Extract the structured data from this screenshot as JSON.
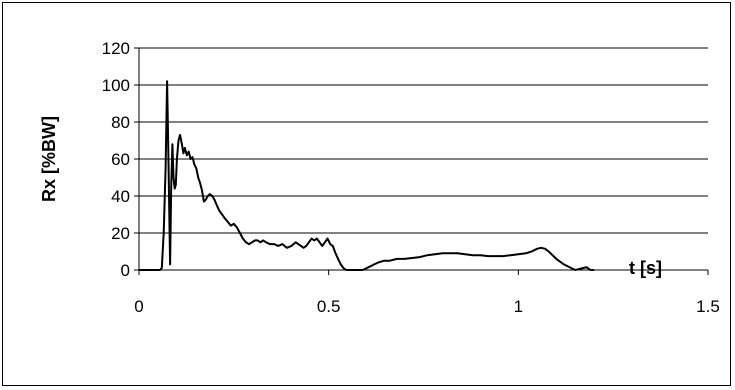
{
  "chart_data": {
    "type": "line",
    "title": "",
    "xlabel": "t [s]",
    "ylabel": "Rx [%BW]",
    "xlim": [
      0,
      1.5
    ],
    "ylim": [
      0,
      120
    ],
    "xticks": [
      "0",
      "0.5",
      "1",
      "1.5"
    ],
    "xtick_values": [
      0,
      0.5,
      1,
      1.5
    ],
    "yticks": [
      "0",
      "20",
      "40",
      "60",
      "80",
      "100",
      "120"
    ],
    "ytick_values": [
      0,
      20,
      40,
      60,
      80,
      100,
      120
    ],
    "grid": "horizontal",
    "legend": "none",
    "line_color": "#000000",
    "series": [
      {
        "x": [
          0,
          0.055,
          0.06,
          0.065,
          0.07,
          0.074,
          0.078,
          0.082,
          0.085,
          0.088,
          0.091,
          0.094,
          0.097,
          0.1,
          0.104,
          0.108,
          0.113,
          0.117,
          0.121,
          0.126,
          0.131,
          0.136,
          0.141,
          0.146,
          0.151,
          0.156,
          0.161,
          0.166,
          0.171,
          0.176,
          0.181,
          0.187,
          0.193,
          0.199,
          0.205,
          0.212,
          0.219,
          0.226,
          0.234,
          0.242,
          0.25,
          0.258,
          0.266,
          0.274,
          0.282,
          0.29,
          0.298,
          0.306,
          0.313,
          0.32,
          0.327,
          0.335,
          0.345,
          0.356,
          0.367,
          0.378,
          0.39,
          0.402,
          0.413,
          0.42,
          0.427,
          0.434,
          0.441,
          0.448,
          0.455,
          0.462,
          0.469,
          0.476,
          0.483,
          0.49,
          0.497,
          0.504,
          0.511,
          0.518,
          0.525,
          0.532,
          0.539,
          0.546,
          0.553,
          0.56,
          0.57,
          0.58,
          0.59,
          0.6,
          0.61,
          0.62,
          0.63,
          0.645,
          0.66,
          0.68,
          0.7,
          0.72,
          0.74,
          0.76,
          0.78,
          0.8,
          0.82,
          0.84,
          0.86,
          0.88,
          0.9,
          0.92,
          0.94,
          0.96,
          0.98,
          1.0,
          1.02,
          1.035,
          1.05,
          1.06,
          1.07,
          1.08,
          1.09,
          1.1,
          1.12,
          1.14,
          1.15,
          1.16,
          1.17,
          1.18,
          1.19,
          1.2
        ],
        "y": [
          0,
          0,
          1,
          20,
          55,
          102,
          55,
          3,
          45,
          68,
          50,
          44,
          46,
          60,
          70,
          73,
          68,
          63,
          66,
          62,
          64,
          60,
          61,
          57,
          55,
          50,
          47,
          43,
          37,
          38,
          40,
          41,
          40,
          38,
          35,
          32,
          30,
          28,
          26,
          24,
          25,
          23,
          20,
          17,
          15,
          14,
          15,
          16,
          16,
          15,
          16,
          15,
          14,
          14,
          13,
          14,
          12,
          13,
          15,
          14,
          13,
          12,
          13,
          15,
          17,
          16,
          17,
          15,
          13,
          15,
          17,
          14,
          13,
          9,
          6,
          3,
          1,
          0,
          0,
          0,
          0,
          0,
          0,
          1,
          2,
          3,
          4,
          5,
          5,
          6,
          6,
          6.5,
          7,
          8,
          8.5,
          9,
          9,
          9,
          8.5,
          8,
          8,
          7.5,
          7.5,
          7.5,
          8,
          8.5,
          9,
          10,
          11.5,
          12,
          11.5,
          10,
          8,
          6,
          3,
          1,
          0,
          0.5,
          1,
          1.5,
          0,
          0
        ]
      }
    ]
  }
}
